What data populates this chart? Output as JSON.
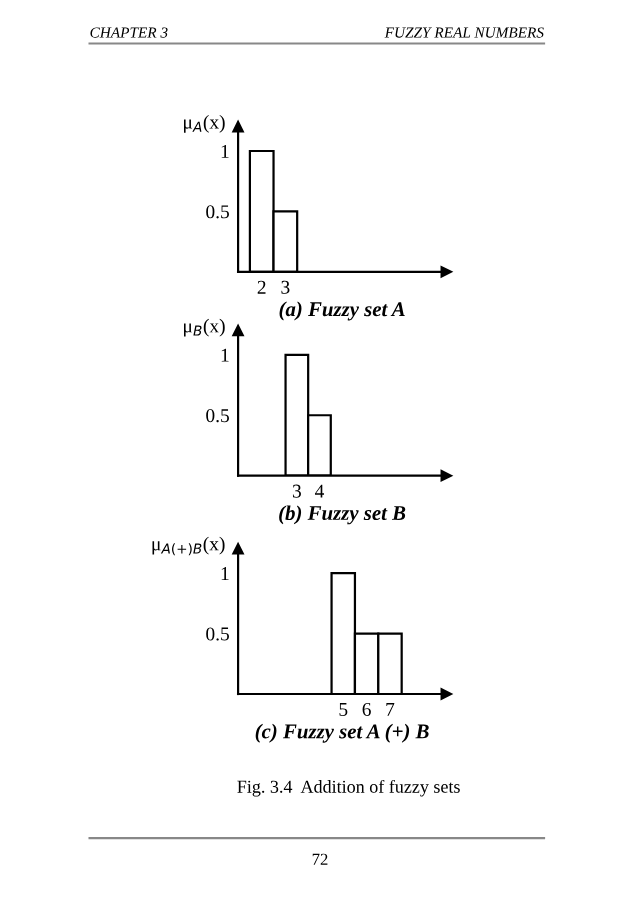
{
  "chart_data": [
    {
      "type": "bar",
      "title": "(a) Fuzzy set A",
      "ylabel": "μ$_{A}$(x)",
      "x": [
        2,
        3
      ],
      "values": [
        1,
        0.5
      ],
      "color": "#ffffff",
      "xlim": [
        1,
        9.8
      ],
      "xticks": [
        2,
        3
      ],
      "ylim": [
        0,
        1.2
      ],
      "yticks": [
        0.5,
        1
      ],
      "grid": false,
      "legend": false,
      "annotations": [
        "CHAPTER 3",
        "FUZZY REAL NUMBERS"
      ]
    },
    {
      "type": "bar",
      "title": "(b) Fuzzy set B",
      "ylabel": "μ$_{B}$(x)",
      "x": [
        3,
        4
      ],
      "values": [
        1,
        0.5
      ],
      "color": "#ffffff",
      "xlim": [
        0.4,
        9.6
      ],
      "xticks": [
        3,
        4
      ],
      "ylim": [
        0,
        1.2
      ],
      "yticks": [
        0.5,
        1
      ],
      "grid": false,
      "legend": false
    },
    {
      "type": "bar",
      "title": "(c) Fuzzy set A (+) B",
      "ylabel": "μ$_{A(+)B}$(x)",
      "x": [
        5,
        6,
        7
      ],
      "values": [
        1,
        0.5,
        0.5
      ],
      "color": "#ffffff",
      "xlim": [
        0.5,
        9.4
      ],
      "xticks": [
        5,
        6,
        7
      ],
      "ylim": [
        0,
        1.2
      ],
      "yticks": [
        0.5,
        1
      ],
      "grid": false,
      "legend": false,
      "annotations": [
        "Fig. 3.4  Addition of fuzzy sets",
        "72"
      ]
    }
  ]
}
